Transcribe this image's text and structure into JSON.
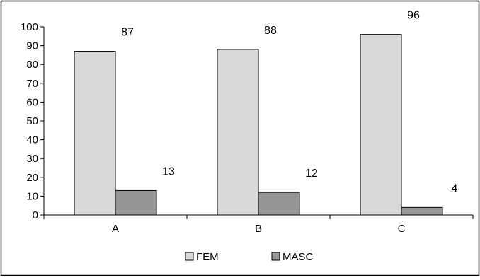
{
  "chart_data": {
    "type": "bar",
    "categories": [
      "A",
      "B",
      "C"
    ],
    "series": [
      {
        "name": "FEM",
        "values": [
          87,
          88,
          96
        ],
        "color": "#d9d9d9"
      },
      {
        "name": "MASC",
        "values": [
          13,
          12,
          4
        ],
        "color": "#969696"
      }
    ],
    "title": "",
    "xlabel": "",
    "ylabel": "",
    "ylim": [
      0,
      100
    ],
    "yticks": [
      0,
      10,
      20,
      30,
      40,
      50,
      60,
      70,
      80,
      90,
      100
    ],
    "grid": false,
    "legend_position": "bottom"
  }
}
